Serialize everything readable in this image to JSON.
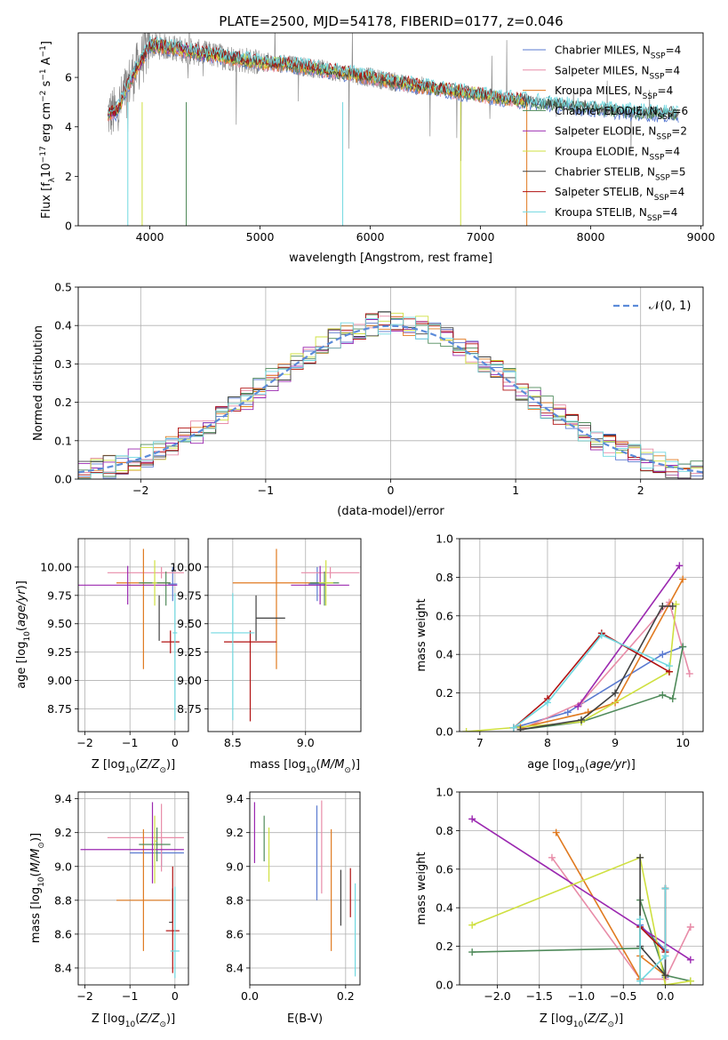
{
  "figure": {
    "title": "PLATE=2500, MJD=54178, FIBERID=0177, z=0.046"
  },
  "chart_data": [
    {
      "id": "spectrum",
      "type": "line",
      "xlabel": "wavelength [Angstrom, rest frame]",
      "ylabel": "Flux [f_λ10^-17 erg cm^-2 s^-1 A^-1]",
      "xlim": [
        3350,
        9020
      ],
      "ylim": [
        0,
        7.8
      ],
      "xticks": [
        4000,
        5000,
        6000,
        7000,
        8000,
        9000
      ],
      "yticks": [
        0,
        2,
        4,
        6
      ],
      "grid": false,
      "legend": "upper-right",
      "data_color": "#808080",
      "series": [
        {
          "name": "Chabrier MILES, N_SSP=4",
          "color": "#5a7ad0"
        },
        {
          "name": "Salpeter MILES, N_SSP=4",
          "color": "#e88ca8"
        },
        {
          "name": "Kroupa MILES, N_SSP=4",
          "color": "#e07a20"
        },
        {
          "name": "Chabrier ELODIE, N_SSP=6",
          "color": "#4f8a5a"
        },
        {
          "name": "Salpeter ELODIE, N_SSP=2",
          "color": "#9b28b0"
        },
        {
          "name": "Kroupa ELODIE, N_SSP=4",
          "color": "#cfe040"
        },
        {
          "name": "Chabrier STELIB, N_SSP=5",
          "color": "#404040"
        },
        {
          "name": "Salpeter STELIB, N_SSP=4",
          "color": "#b01010"
        },
        {
          "name": "Kroupa STELIB, N_SSP=4",
          "color": "#70d8e0"
        }
      ],
      "continuum": [
        [
          3620,
          4.5
        ],
        [
          3700,
          4.6
        ],
        [
          3800,
          5.7
        ],
        [
          3900,
          6.5
        ],
        [
          4000,
          7.3
        ],
        [
          4200,
          7.2
        ],
        [
          4500,
          6.95
        ],
        [
          4800,
          6.75
        ],
        [
          5000,
          6.6
        ],
        [
          5300,
          6.5
        ],
        [
          5600,
          6.3
        ],
        [
          6000,
          6.0
        ],
        [
          6300,
          5.75
        ],
        [
          6600,
          5.55
        ],
        [
          7000,
          5.3
        ],
        [
          7400,
          5.05
        ],
        [
          7700,
          4.9
        ],
        [
          8000,
          4.75
        ],
        [
          8400,
          4.6
        ],
        [
          8800,
          4.5
        ]
      ]
    },
    {
      "id": "residuals",
      "type": "step",
      "xlabel": "(data-model)/error",
      "ylabel": "Normed distribution",
      "xlim": [
        -2.5,
        2.5
      ],
      "ylim": [
        0,
        0.5
      ],
      "xticks": [
        -2,
        -1,
        0,
        1,
        2
      ],
      "yticks": [
        0.0,
        0.1,
        0.2,
        0.3,
        0.4,
        0.5
      ],
      "grid": true,
      "legend": "upper-right",
      "reference": {
        "name": "𝒩(0, 1)",
        "color": "#5b8bd9"
      },
      "bin_width": 0.1
    },
    {
      "id": "age-vs-Z",
      "type": "errorbar",
      "xlabel": "Z [log10(Z/Z⊙)]",
      "ylabel": "age  [log10(age/yr)]",
      "xlim": [
        -2.15,
        0.3
      ],
      "ylim": [
        8.55,
        10.25
      ],
      "xticks": [
        -2,
        -1,
        0
      ],
      "yticks": [
        8.75,
        9.0,
        9.25,
        9.5,
        9.75,
        10.0
      ],
      "grid": true,
      "points": [
        {
          "series": 0,
          "x": -0.05,
          "y": 9.85,
          "xerr": [
            0.1,
            0.1
          ],
          "yerr": [
            0.15,
            0.15
          ]
        },
        {
          "series": 1,
          "x": -0.3,
          "y": 9.95,
          "xerr": [
            1.2,
            0.5
          ],
          "yerr": [
            0.05,
            0.05
          ]
        },
        {
          "series": 2,
          "x": -0.7,
          "y": 9.86,
          "xerr": [
            0.6,
            0.6
          ],
          "yerr": [
            0.76,
            0.3
          ]
        },
        {
          "series": 3,
          "x": -0.2,
          "y": 9.86,
          "xerr": [
            0.6,
            0.1
          ],
          "yerr": [
            0.2,
            0.1
          ]
        },
        {
          "series": 4,
          "x": -1.05,
          "y": 9.84,
          "xerr": [
            1.1,
            1.1
          ],
          "yerr": [
            0.17,
            0.17
          ]
        },
        {
          "series": 5,
          "x": -0.45,
          "y": 9.86,
          "xerr": [
            0.05,
            0.05
          ],
          "yerr": [
            0.2,
            0.2
          ]
        },
        {
          "series": 6,
          "x": -0.35,
          "y": 9.55,
          "xerr": [
            0.0,
            0.0
          ],
          "yerr": [
            0.2,
            0.2
          ]
        },
        {
          "series": 7,
          "x": -0.1,
          "y": 9.34,
          "xerr": [
            0.2,
            0.2
          ],
          "yerr": [
            0.1,
            0.1
          ]
        },
        {
          "series": 8,
          "x": 0.0,
          "y": 9.42,
          "xerr": [
            0.05,
            0.05
          ],
          "yerr": [
            0.77,
            0.35
          ]
        }
      ]
    },
    {
      "id": "age-vs-mass",
      "type": "errorbar",
      "xlabel": "mass [log10(M/M⊙)]",
      "ylabel": "",
      "xlim": [
        8.33,
        9.38
      ],
      "ylim": [
        8.55,
        10.25
      ],
      "xticks": [
        8.5,
        9.0
      ],
      "yticks": [
        8.75,
        9.0,
        9.25,
        9.5,
        9.75,
        10.0
      ],
      "grid": true,
      "points": [
        {
          "series": 0,
          "x": 9.08,
          "y": 9.85,
          "xerr": [
            0.06,
            0.06
          ],
          "yerr": [
            0.15,
            0.15
          ]
        },
        {
          "series": 1,
          "x": 9.17,
          "y": 9.95,
          "xerr": [
            0.2,
            0.2
          ],
          "yerr": [
            0.05,
            0.05
          ]
        },
        {
          "series": 2,
          "x": 8.8,
          "y": 9.86,
          "xerr": [
            0.3,
            0.3
          ],
          "yerr": [
            0.76,
            0.3
          ]
        },
        {
          "series": 3,
          "x": 9.13,
          "y": 9.86,
          "xerr": [
            0.1,
            0.1
          ],
          "yerr": [
            0.2,
            0.1
          ]
        },
        {
          "series": 4,
          "x": 9.1,
          "y": 9.84,
          "xerr": [
            0.2,
            0.2
          ],
          "yerr": [
            0.17,
            0.17
          ]
        },
        {
          "series": 5,
          "x": 9.14,
          "y": 9.86,
          "xerr": [
            0.05,
            0.05
          ],
          "yerr": [
            0.2,
            0.2
          ]
        },
        {
          "series": 6,
          "x": 8.66,
          "y": 9.55,
          "xerr": [
            0.0,
            0.2
          ],
          "yerr": [
            0.2,
            0.2
          ]
        },
        {
          "series": 7,
          "x": 8.62,
          "y": 9.34,
          "xerr": [
            0.18,
            0.18
          ],
          "yerr": [
            0.7,
            0.1
          ]
        },
        {
          "series": 8,
          "x": 8.5,
          "y": 9.42,
          "xerr": [
            0.15,
            0.15
          ],
          "yerr": [
            0.77,
            0.35
          ]
        }
      ]
    },
    {
      "id": "weight-vs-age",
      "type": "line",
      "xlabel": "age  [log10(age/yr)]",
      "ylabel": "mass weight",
      "xlim": [
        6.7,
        10.3
      ],
      "ylim": [
        0,
        1.0
      ],
      "xticks": [
        7,
        8,
        9,
        10
      ],
      "yticks": [
        0.0,
        0.2,
        0.4,
        0.6,
        0.8,
        1.0
      ],
      "grid": true,
      "series": [
        {
          "series": 0,
          "x": [
            7.5,
            8.3,
            9.7,
            10.0
          ],
          "y": [
            0.02,
            0.1,
            0.4,
            0.44
          ]
        },
        {
          "series": 1,
          "x": [
            7.6,
            8.5,
            9.8,
            10.1
          ],
          "y": [
            0.01,
            0.15,
            0.67,
            0.3
          ]
        },
        {
          "series": 2,
          "x": [
            7.6,
            8.6,
            9.0,
            10.0
          ],
          "y": [
            0.02,
            0.1,
            0.15,
            0.79
          ]
        },
        {
          "series": 3,
          "x": [
            7.6,
            8.5,
            9.7,
            9.85,
            10.0
          ],
          "y": [
            0.01,
            0.05,
            0.19,
            0.17,
            0.44
          ]
        },
        {
          "series": 4,
          "x": [
            8.45,
            9.95
          ],
          "y": [
            0.13,
            0.86
          ]
        },
        {
          "series": 5,
          "x": [
            6.8,
            8.5,
            9.8,
            9.9
          ],
          "y": [
            0.0,
            0.05,
            0.31,
            0.66
          ]
        },
        {
          "series": 6,
          "x": [
            7.6,
            8.5,
            9.0,
            9.7,
            9.85
          ],
          "y": [
            0.01,
            0.06,
            0.2,
            0.65,
            0.65
          ]
        },
        {
          "series": 7,
          "x": [
            7.5,
            8.0,
            8.8,
            9.8
          ],
          "y": [
            0.02,
            0.17,
            0.51,
            0.31
          ]
        },
        {
          "series": 8,
          "x": [
            7.5,
            8.0,
            8.8,
            9.8
          ],
          "y": [
            0.02,
            0.15,
            0.5,
            0.34
          ]
        }
      ]
    },
    {
      "id": "mass-vs-Z",
      "type": "errorbar",
      "xlabel": "Z [log10(Z/Z⊙)]",
      "ylabel": "mass [log10(M/M⊙)]",
      "xlim": [
        -2.15,
        0.3
      ],
      "ylim": [
        8.3,
        9.44
      ],
      "xticks": [
        -2,
        -1,
        0
      ],
      "yticks": [
        8.4,
        8.6,
        8.8,
        9.0,
        9.2,
        9.4
      ],
      "grid": true,
      "points": [
        {
          "series": 0,
          "x": -0.3,
          "y": 9.08,
          "xerr": [
            0.7,
            0.5
          ],
          "yerr": [
            0.08,
            0.08
          ]
        },
        {
          "series": 1,
          "x": -0.3,
          "y": 9.17,
          "xerr": [
            1.2,
            0.5
          ],
          "yerr": [
            0.2,
            0.2
          ]
        },
        {
          "series": 2,
          "x": -0.7,
          "y": 8.8,
          "xerr": [
            0.6,
            0.6
          ],
          "yerr": [
            0.3,
            0.42
          ]
        },
        {
          "series": 3,
          "x": -0.4,
          "y": 9.13,
          "xerr": [
            0.4,
            0.3
          ],
          "yerr": [
            0.1,
            0.1
          ]
        },
        {
          "series": 4,
          "x": -0.5,
          "y": 9.1,
          "xerr": [
            1.6,
            0.7
          ],
          "yerr": [
            0.2,
            0.28
          ]
        },
        {
          "series": 5,
          "x": -0.45,
          "y": 9.15,
          "xerr": [
            0.0,
            0.05
          ],
          "yerr": [
            0.25,
            0.15
          ]
        },
        {
          "series": 6,
          "x": -0.05,
          "y": 8.67,
          "xerr": [
            0.08,
            0.0
          ],
          "yerr": [
            0.0,
            0.2
          ]
        },
        {
          "series": 7,
          "x": -0.05,
          "y": 8.62,
          "xerr": [
            0.15,
            0.15
          ],
          "yerr": [
            0.25,
            0.38
          ]
        },
        {
          "series": 8,
          "x": 0.0,
          "y": 8.5,
          "xerr": [
            0.1,
            0.1
          ],
          "yerr": [
            0.16,
            0.38
          ]
        }
      ]
    },
    {
      "id": "mass-vs-EBV",
      "type": "errorbar",
      "xlabel": "E(B-V)",
      "ylabel": "",
      "xlim": [
        0.0,
        0.23
      ],
      "ylim": [
        8.3,
        9.44
      ],
      "xticks": [
        0.0,
        0.2
      ],
      "yticks": [
        8.4,
        8.6,
        8.8,
        9.0,
        9.2,
        9.4
      ],
      "grid": true,
      "points": [
        {
          "series": 0,
          "x": 0.14,
          "y": 9.08,
          "xerr": [
            0,
            0
          ],
          "yerr": [
            0.28,
            0.28
          ]
        },
        {
          "series": 1,
          "x": 0.15,
          "y": 9.17,
          "xerr": [
            0,
            0
          ],
          "yerr": [
            0.33,
            0.22
          ]
        },
        {
          "series": 2,
          "x": 0.17,
          "y": 8.86,
          "xerr": [
            0,
            0
          ],
          "yerr": [
            0.36,
            0.36
          ]
        },
        {
          "series": 3,
          "x": 0.03,
          "y": 9.13,
          "xerr": [
            0,
            0
          ],
          "yerr": [
            0.1,
            0.17
          ]
        },
        {
          "series": 4,
          "x": 0.01,
          "y": 9.2,
          "xerr": [
            0,
            0
          ],
          "yerr": [
            0.18,
            0.18
          ]
        },
        {
          "series": 5,
          "x": 0.04,
          "y": 9.07,
          "xerr": [
            0,
            0
          ],
          "yerr": [
            0.16,
            0.16
          ]
        },
        {
          "series": 6,
          "x": 0.19,
          "y": 8.75,
          "xerr": [
            0,
            0
          ],
          "yerr": [
            0.1,
            0.23
          ]
        },
        {
          "series": 7,
          "x": 0.21,
          "y": 8.85,
          "xerr": [
            0,
            0
          ],
          "yerr": [
            0.15,
            0.14
          ]
        },
        {
          "series": 8,
          "x": 0.22,
          "y": 8.65,
          "xerr": [
            0,
            0
          ],
          "yerr": [
            0.3,
            0.25
          ]
        }
      ]
    },
    {
      "id": "weight-vs-Z",
      "type": "line",
      "xlabel": "Z [log10(Z/Z⊙)]",
      "ylabel": "mass weight",
      "xlim": [
        -2.45,
        0.45
      ],
      "ylim": [
        0,
        1.0
      ],
      "xticks": [
        -2.0,
        -1.5,
        -1.0,
        -0.5,
        0.0
      ],
      "yticks": [
        0.0,
        0.2,
        0.4,
        0.6,
        0.8,
        1.0
      ],
      "grid": true,
      "series": [
        {
          "series": 0,
          "x": [
            -0.3,
            0.0,
            0.0
          ],
          "y": [
            0.31,
            0.18,
            0.04
          ]
        },
        {
          "series": 1,
          "x": [
            -1.35,
            -0.3,
            0.0,
            0.3,
            0.3
          ],
          "y": [
            0.66,
            0.03,
            0.03,
            0.3,
            0.3
          ]
        },
        {
          "series": 2,
          "x": [
            -1.3,
            -0.3,
            -0.3,
            0.0
          ],
          "y": [
            0.79,
            0.03,
            0.15,
            0.05
          ]
        },
        {
          "series": 3,
          "x": [
            -2.3,
            -0.3,
            -0.3,
            0.0,
            0.3
          ],
          "y": [
            0.17,
            0.19,
            0.44,
            0.05,
            0.02
          ]
        },
        {
          "series": 4,
          "x": [
            -2.3,
            0.3
          ],
          "y": [
            0.86,
            0.13
          ]
        },
        {
          "series": 5,
          "x": [
            -2.3,
            -0.3,
            0.0,
            0.3
          ],
          "y": [
            0.31,
            0.66,
            0.0,
            0.02
          ]
        },
        {
          "series": 6,
          "x": [
            -0.3,
            -0.3,
            0.0,
            0.0
          ],
          "y": [
            0.66,
            0.2,
            0.05,
            0.5
          ]
        },
        {
          "series": 7,
          "x": [
            -0.3,
            0.0,
            0.0
          ],
          "y": [
            0.3,
            0.17,
            0.5
          ]
        },
        {
          "series": 8,
          "x": [
            -0.3,
            -0.3,
            0.0,
            0.0
          ],
          "y": [
            0.34,
            0.02,
            0.15,
            0.5
          ]
        }
      ]
    }
  ]
}
